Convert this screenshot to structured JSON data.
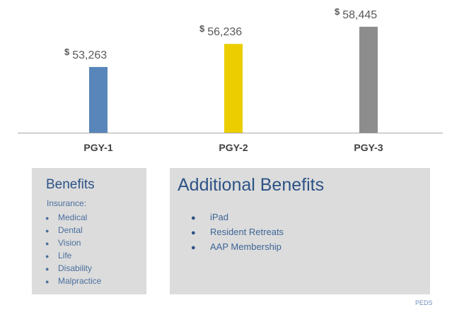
{
  "chart_data": {
    "type": "bar",
    "categories": [
      "PGY-1",
      "PGY-2",
      "PGY-3"
    ],
    "values": [
      53263,
      56236,
      58445
    ],
    "labels": [
      "53,263",
      "56,236",
      "58,445"
    ],
    "currency_symbol": "$",
    "colors": [
      "#5886bb",
      "#ecce00",
      "#8d8d8d"
    ],
    "axis_color": "#a6a6a6",
    "grid": false,
    "title": "",
    "xlabel": "",
    "ylabel": ""
  },
  "benefits": {
    "title": "Benefits",
    "subtitle": "Insurance:",
    "items": [
      "Medical",
      "Dental",
      "Vision",
      "Life",
      "Disability",
      "Malpractice"
    ]
  },
  "additional": {
    "title": "Additional Benefits",
    "items": [
      "iPad",
      "Resident Retreats",
      "AAP Membership"
    ]
  },
  "footer": {
    "tag": "PEDS"
  }
}
